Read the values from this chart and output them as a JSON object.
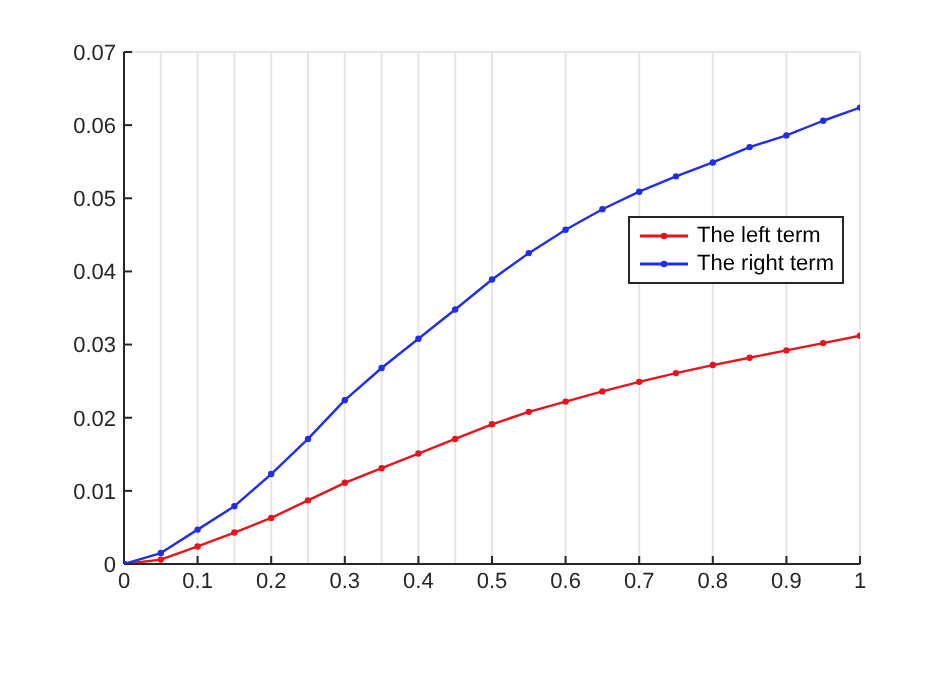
{
  "chart_data": {
    "type": "line",
    "x": [
      0,
      0.05,
      0.1,
      0.15,
      0.2,
      0.25,
      0.3,
      0.35,
      0.4,
      0.45,
      0.5,
      0.55,
      0.6,
      0.65,
      0.7,
      0.75,
      0.8,
      0.85,
      0.9,
      0.95,
      1
    ],
    "series": [
      {
        "name": "The left term",
        "color": "#e8141c",
        "values": [
          0,
          0.0006,
          0.0024,
          0.0043,
          0.0063,
          0.0087,
          0.0111,
          0.0131,
          0.0151,
          0.0171,
          0.0191,
          0.0208,
          0.0222,
          0.0236,
          0.0249,
          0.0261,
          0.0272,
          0.0282,
          0.0292,
          0.0302,
          0.0312
        ]
      },
      {
        "name": "The right term",
        "color": "#1f2fe8",
        "values": [
          0,
          0.0015,
          0.0047,
          0.0079,
          0.0123,
          0.0171,
          0.0224,
          0.0268,
          0.0308,
          0.0348,
          0.0389,
          0.0425,
          0.0457,
          0.0485,
          0.0509,
          0.053,
          0.0549,
          0.057,
          0.0586,
          0.0606,
          0.0624
        ]
      }
    ],
    "xlim": [
      0,
      1
    ],
    "xticks": [
      0,
      0.1,
      0.2,
      0.3,
      0.4,
      0.5,
      0.6,
      0.7,
      0.8,
      0.9,
      1
    ],
    "ylim": [
      0,
      0.07
    ],
    "yticks": [
      0,
      0.01,
      0.02,
      0.03,
      0.04,
      0.05,
      0.06,
      0.07
    ],
    "grid": true,
    "legend": "right",
    "marker": "circle",
    "line_style": "solid"
  }
}
